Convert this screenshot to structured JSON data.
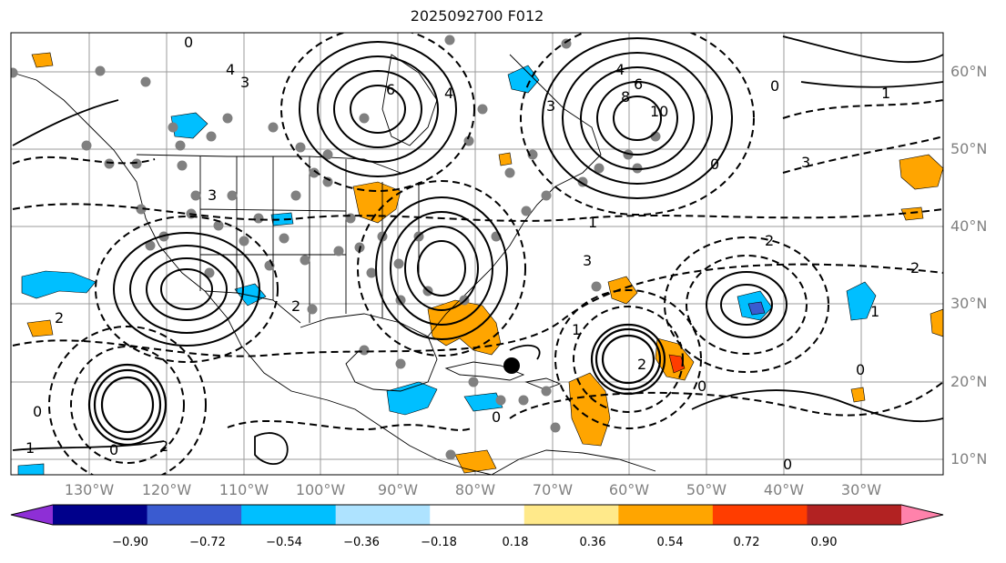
{
  "title": "2025092700 F012",
  "lat_labels": [
    "60°N",
    "50°N",
    "40°N",
    "30°N",
    "20°N",
    "10°N"
  ],
  "lon_labels": [
    "130°W",
    "120°W",
    "110°W",
    "100°W",
    "90°W",
    "80°W",
    "70°W",
    "60°W",
    "50°W",
    "40°W",
    "30°W"
  ],
  "colorbar": {
    "tick_labels": [
      "−0.90",
      "−0.72",
      "−0.54",
      "−0.36",
      "−0.18",
      "0.18",
      "0.36",
      "0.54",
      "0.72",
      "0.90"
    ],
    "colors": [
      "#8e2fd6",
      "#00008b",
      "#3a5bd0",
      "#00bfff",
      "#aee3ff",
      "#ffffff",
      "#ffe98a",
      "#ffa500",
      "#ff3d00",
      "#b22222",
      "#ff82ab"
    ]
  },
  "contour_labels": [
    "0",
    "1",
    "2",
    "3",
    "4",
    "6",
    "8",
    "10"
  ],
  "colors": {
    "grid": "#9b9b9b",
    "contour": "#000000",
    "coast": "#000000",
    "dot": "#808080",
    "axis_label": "#808080"
  }
}
